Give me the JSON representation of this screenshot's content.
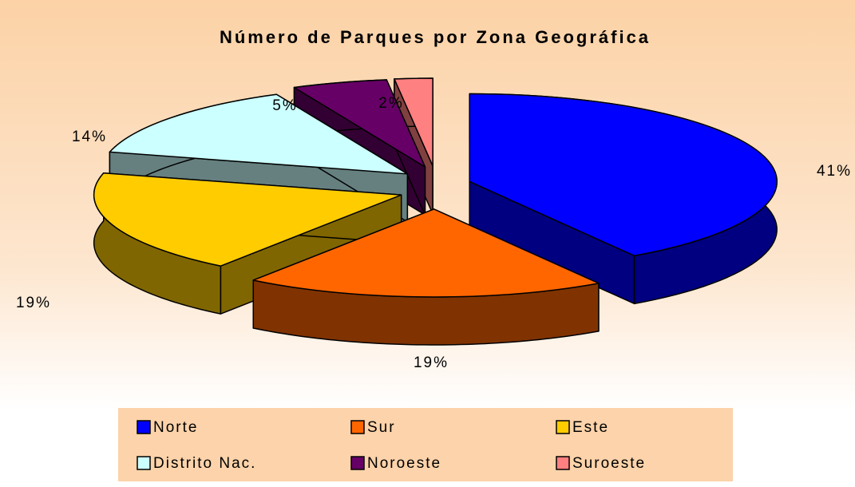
{
  "chart_data": {
    "type": "pie",
    "title": "Número de Parques por Zona Geográfica",
    "categories": [
      "Norte",
      "Sur",
      "Este",
      "Distrito Nac.",
      "Noroeste",
      "Suroeste"
    ],
    "values": [
      41,
      19,
      19,
      14,
      5,
      2
    ],
    "value_labels": [
      "41%",
      "19%",
      "19%",
      "14%",
      "5%",
      "2%"
    ],
    "colors": [
      "#0000ff",
      "#ff6600",
      "#ffcc00",
      "#ccffff",
      "#660066",
      "#ff8080"
    ],
    "legend": "bottom"
  }
}
